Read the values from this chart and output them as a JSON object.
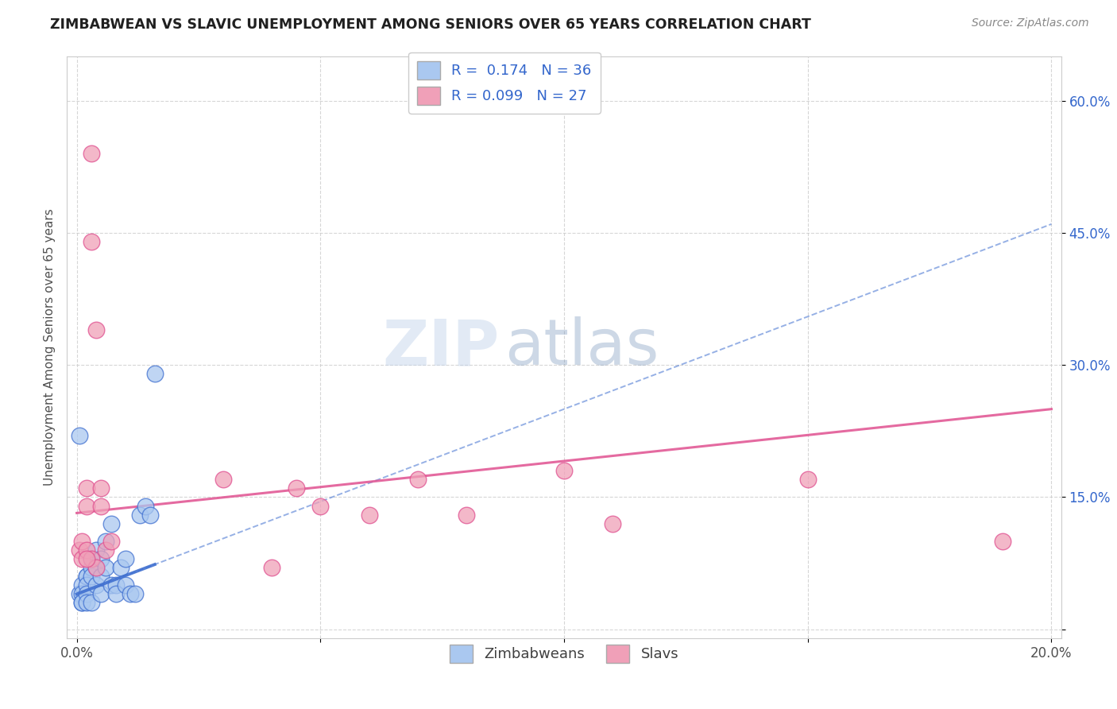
{
  "title": "ZIMBABWEAN VS SLAVIC UNEMPLOYMENT AMONG SENIORS OVER 65 YEARS CORRELATION CHART",
  "source": "Source: ZipAtlas.com",
  "ylabel": "Unemployment Among Seniors over 65 years",
  "xlim": [
    -0.002,
    0.202
  ],
  "ylim": [
    -0.01,
    0.65
  ],
  "xticks": [
    0.0,
    0.05,
    0.1,
    0.15,
    0.2
  ],
  "yticks": [
    0.0,
    0.15,
    0.3,
    0.45,
    0.6
  ],
  "ytick_labels": [
    "",
    "15.0%",
    "30.0%",
    "45.0%",
    "60.0%"
  ],
  "xtick_labels": [
    "0.0%",
    "",
    "",
    "",
    "20.0%"
  ],
  "zimbabwean_R": 0.174,
  "zimbabwean_N": 36,
  "slavic_R": 0.099,
  "slavic_N": 27,
  "zimbabwean_color": "#aac8f0",
  "slavic_color": "#f0a0b8",
  "zimbabwean_line_color": "#4070d0",
  "slavic_line_color": "#e05090",
  "watermark_zip": "ZIP",
  "watermark_atlas": "atlas",
  "zimbabwean_x": [
    0.0005,
    0.001,
    0.001,
    0.001,
    0.001,
    0.002,
    0.002,
    0.002,
    0.002,
    0.002,
    0.003,
    0.003,
    0.003,
    0.003,
    0.004,
    0.004,
    0.004,
    0.005,
    0.005,
    0.005,
    0.006,
    0.006,
    0.007,
    0.007,
    0.008,
    0.008,
    0.009,
    0.01,
    0.01,
    0.011,
    0.012,
    0.013,
    0.014,
    0.015,
    0.016,
    0.0005
  ],
  "zimbabwean_y": [
    0.04,
    0.05,
    0.04,
    0.03,
    0.03,
    0.06,
    0.06,
    0.05,
    0.04,
    0.03,
    0.08,
    0.07,
    0.06,
    0.03,
    0.09,
    0.07,
    0.05,
    0.08,
    0.06,
    0.04,
    0.1,
    0.07,
    0.12,
    0.05,
    0.05,
    0.04,
    0.07,
    0.08,
    0.05,
    0.04,
    0.04,
    0.13,
    0.14,
    0.13,
    0.29,
    0.22
  ],
  "slavic_x": [
    0.0005,
    0.001,
    0.001,
    0.002,
    0.002,
    0.002,
    0.003,
    0.003,
    0.003,
    0.004,
    0.004,
    0.005,
    0.005,
    0.006,
    0.007,
    0.03,
    0.04,
    0.045,
    0.05,
    0.06,
    0.07,
    0.08,
    0.1,
    0.11,
    0.15,
    0.19,
    0.002
  ],
  "slavic_y": [
    0.09,
    0.1,
    0.08,
    0.16,
    0.14,
    0.09,
    0.54,
    0.44,
    0.08,
    0.34,
    0.07,
    0.16,
    0.14,
    0.09,
    0.1,
    0.17,
    0.07,
    0.16,
    0.14,
    0.13,
    0.17,
    0.13,
    0.18,
    0.12,
    0.17,
    0.1,
    0.08
  ],
  "zim_line_x0": 0.0,
  "zim_line_y0": 0.04,
  "zim_line_x1": 0.2,
  "zim_line_y1": 0.46,
  "slav_line_x0": 0.0,
  "slav_line_y0": 0.132,
  "slav_line_x1": 0.2,
  "slav_line_y1": 0.25
}
